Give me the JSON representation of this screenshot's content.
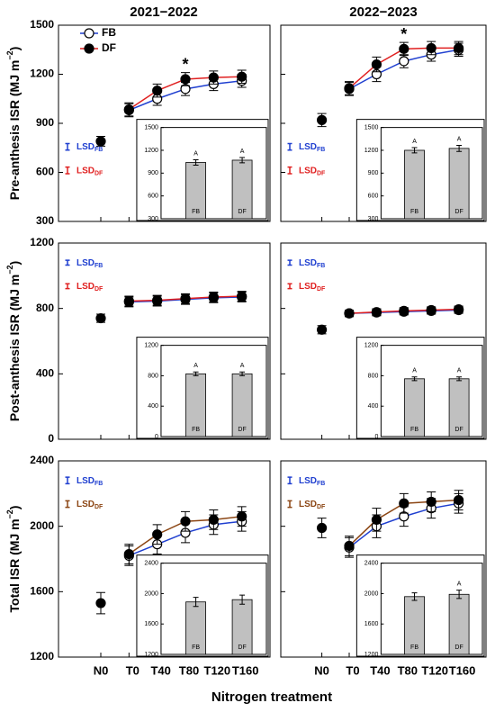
{
  "column_titles": [
    "2021−2022",
    "2022−2023"
  ],
  "row_labels": [
    {
      "text": "Pre-anthesis ISR (MJ m",
      "sup": "−2",
      "end": ")"
    },
    {
      "text": "Post-anthesis ISR (MJ m",
      "sup": "−2",
      "end": ")"
    },
    {
      "text": "Total ISR (MJ m",
      "sup": "−2",
      "end": ")"
    }
  ],
  "x_label": "Nitrogen treatment",
  "chart_data": [
    {
      "type": "line",
      "ylim": [
        300,
        1500
      ],
      "yticks": [
        300,
        600,
        900,
        1200,
        1500
      ],
      "legend": "upper left",
      "lsd_corner": "center left",
      "series": [
        {
          "name": "FB",
          "color": "#1f3fd0",
          "marker_face": "#ffffff",
          "values": [
            null,
            980,
            1050,
            1110,
            1140,
            1160
          ],
          "errors": [
            null,
            40,
            40,
            40,
            40,
            40
          ]
        },
        {
          "name": "DF",
          "color": "#e02020",
          "marker_face": "#000000",
          "values": [
            null,
            985,
            1100,
            1170,
            1180,
            1185
          ],
          "errors": [
            null,
            40,
            40,
            40,
            40,
            40
          ]
        },
        {
          "color": "#000000",
          "marker_face": "#000000",
          "values": [
            790,
            null,
            null,
            null,
            null,
            null
          ],
          "errors": [
            30,
            null,
            null,
            null,
            null,
            null
          ]
        }
      ],
      "annotations": [
        {
          "text": "*",
          "at": 3
        }
      ],
      "lsd": [
        {
          "label": "LSD",
          "sub": "FB",
          "value": 40,
          "color": "#1f3fd0"
        },
        {
          "label": "LSD",
          "sub": "DF",
          "value": 40,
          "color": "#e02020"
        }
      ],
      "inset": {
        "categories": [
          "FB",
          "DF"
        ],
        "values": [
          1040,
          1070
        ],
        "errors": [
          35,
          35
        ],
        "letters": [
          "A",
          "A"
        ],
        "color": "#c0c0c0",
        "ylim": [
          300,
          1500
        ],
        "yticks": [
          300,
          600,
          900,
          1200,
          1500
        ]
      }
    },
    {
      "type": "line",
      "ylim": [
        300,
        1500
      ],
      "yticks": [
        300,
        600,
        900,
        1200,
        1500
      ],
      "lsd_corner": "center left",
      "series": [
        {
          "name": "FB",
          "color": "#1f3fd0",
          "marker_face": "#ffffff",
          "values": [
            null,
            1110,
            1200,
            1280,
            1320,
            1350
          ],
          "errors": [
            null,
            40,
            45,
            40,
            40,
            40
          ]
        },
        {
          "name": "DF",
          "color": "#e02020",
          "marker_face": "#000000",
          "values": [
            null,
            1115,
            1260,
            1355,
            1360,
            1360
          ],
          "errors": [
            null,
            40,
            45,
            40,
            40,
            40
          ]
        },
        {
          "color": "#000000",
          "marker_face": "#000000",
          "values": [
            920,
            null,
            null,
            null,
            null,
            null
          ],
          "errors": [
            40,
            null,
            null,
            null,
            null,
            null
          ]
        }
      ],
      "annotations": [
        {
          "text": "*",
          "at": 3
        }
      ],
      "lsd": [
        {
          "label": "LSD",
          "sub": "FB",
          "value": 40,
          "color": "#1f3fd0"
        },
        {
          "label": "LSD",
          "sub": "DF",
          "value": 40,
          "color": "#e02020"
        }
      ],
      "inset": {
        "categories": [
          "FB",
          "DF"
        ],
        "values": [
          1200,
          1225
        ],
        "errors": [
          35,
          40
        ],
        "letters": [
          "A",
          "A"
        ],
        "color": "#c0c0c0",
        "ylim": [
          300,
          1500
        ],
        "yticks": [
          300,
          600,
          900,
          1200,
          1500
        ]
      }
    },
    {
      "type": "line",
      "ylim": [
        0,
        1200
      ],
      "yticks": [
        0,
        400,
        800,
        1200
      ],
      "lsd_corner": "upper left",
      "series": [
        {
          "name": "FB",
          "color": "#1f3fd0",
          "marker_face": "#ffffff",
          "values": [
            null,
            840,
            845,
            855,
            865,
            870
          ],
          "errors": [
            null,
            30,
            30,
            30,
            30,
            30
          ]
        },
        {
          "name": "DF",
          "color": "#e02020",
          "marker_face": "#000000",
          "values": [
            null,
            845,
            850,
            860,
            870,
            875
          ],
          "errors": [
            null,
            30,
            30,
            30,
            30,
            30
          ]
        },
        {
          "color": "#000000",
          "marker_face": "#000000",
          "values": [
            740,
            null,
            null,
            null,
            null,
            null
          ],
          "errors": [
            25,
            null,
            null,
            null,
            null,
            null
          ]
        }
      ],
      "lsd": [
        {
          "label": "LSD",
          "sub": "FB",
          "value": 30,
          "color": "#1f3fd0"
        },
        {
          "label": "LSD",
          "sub": "DF",
          "value": 30,
          "color": "#e02020"
        }
      ],
      "inset": {
        "categories": [
          "FB",
          "DF"
        ],
        "values": [
          825,
          825
        ],
        "errors": [
          25,
          25
        ],
        "letters": [
          "A",
          "A"
        ],
        "color": "#c0c0c0",
        "ylim": [
          0,
          1200
        ],
        "yticks": [
          0,
          400,
          800,
          1200
        ]
      }
    },
    {
      "type": "line",
      "ylim": [
        0,
        1200
      ],
      "yticks": [
        0,
        400,
        800,
        1200
      ],
      "lsd_corner": "upper left",
      "series": [
        {
          "name": "FB",
          "color": "#1f3fd0",
          "marker_face": "#ffffff",
          "values": [
            null,
            770,
            775,
            780,
            785,
            790
          ],
          "errors": [
            null,
            20,
            20,
            20,
            20,
            20
          ]
        },
        {
          "name": "DF",
          "color": "#e02020",
          "marker_face": "#000000",
          "values": [
            null,
            770,
            778,
            785,
            790,
            795
          ],
          "errors": [
            null,
            20,
            20,
            20,
            20,
            20
          ]
        },
        {
          "color": "#000000",
          "marker_face": "#000000",
          "values": [
            670,
            null,
            null,
            null,
            null,
            null
          ],
          "errors": [
            25,
            null,
            null,
            null,
            null,
            null
          ]
        }
      ],
      "lsd": [
        {
          "label": "LSD",
          "sub": "FB",
          "value": 30,
          "color": "#1f3fd0"
        },
        {
          "label": "LSD",
          "sub": "DF",
          "value": 30,
          "color": "#e02020"
        }
      ],
      "inset": {
        "categories": [
          "FB",
          "DF"
        ],
        "values": [
          760,
          760
        ],
        "errors": [
          25,
          25
        ],
        "letters": [
          "A",
          "A"
        ],
        "color": "#c0c0c0",
        "ylim": [
          0,
          1200
        ],
        "yticks": [
          0,
          400,
          800,
          1200
        ]
      }
    },
    {
      "type": "line",
      "ylim": [
        1200,
        2400
      ],
      "yticks": [
        1200,
        1600,
        2000,
        2400
      ],
      "lsd_corner": "upper left",
      "categories": [
        "N0",
        "T0",
        "T40",
        "T80",
        "T120",
        "T160"
      ],
      "series": [
        {
          "name": "FB",
          "color": "#1f3fd0",
          "marker_face": "#ffffff",
          "values": [
            null,
            1820,
            1890,
            1960,
            2010,
            2030
          ],
          "errors": [
            null,
            60,
            60,
            60,
            60,
            60
          ]
        },
        {
          "name": "DF",
          "color": "#8b4513",
          "marker_face": "#000000",
          "values": [
            null,
            1830,
            1950,
            2030,
            2040,
            2060
          ],
          "errors": [
            null,
            60,
            60,
            60,
            60,
            60
          ]
        },
        {
          "color": "#000000",
          "marker_face": "#000000",
          "values": [
            1530,
            null,
            null,
            null,
            null,
            null
          ],
          "errors": [
            65,
            null,
            null,
            null,
            null,
            null
          ]
        }
      ],
      "lsd": [
        {
          "label": "LSD",
          "sub": "FB",
          "value": 40,
          "color": "#1f3fd0"
        },
        {
          "label": "LSD",
          "sub": "DF",
          "value": 40,
          "color": "#8b4513"
        }
      ],
      "inset": {
        "categories": [
          "FB",
          "DF"
        ],
        "values": [
          1890,
          1920
        ],
        "errors": [
          60,
          60
        ],
        "letters": [
          null,
          null
        ],
        "color": "#c0c0c0",
        "ylim": [
          1200,
          2400
        ],
        "yticks": [
          1200,
          1600,
          2000,
          2400
        ]
      }
    },
    {
      "type": "line",
      "ylim": [
        1200,
        2400
      ],
      "yticks": [
        1200,
        1600,
        2000,
        2400
      ],
      "lsd_corner": "upper left",
      "categories": [
        "N0",
        "T0",
        "T40",
        "T80",
        "T120",
        "T160"
      ],
      "series": [
        {
          "name": "FB",
          "color": "#1f3fd0",
          "marker_face": "#ffffff",
          "values": [
            null,
            1870,
            2000,
            2060,
            2110,
            2140
          ],
          "errors": [
            null,
            60,
            70,
            60,
            60,
            60
          ]
        },
        {
          "name": "DF",
          "color": "#8b4513",
          "marker_face": "#000000",
          "values": [
            null,
            1880,
            2040,
            2140,
            2150,
            2160
          ],
          "errors": [
            null,
            60,
            70,
            60,
            60,
            60
          ]
        },
        {
          "color": "#000000",
          "marker_face": "#000000",
          "values": [
            1990,
            null,
            null,
            null,
            null,
            null
          ],
          "errors": [
            60,
            null,
            null,
            null,
            null,
            null
          ]
        }
      ],
      "lsd": [
        {
          "label": "LSD",
          "sub": "FB",
          "value": 40,
          "color": "#1f3fd0"
        },
        {
          "label": "LSD",
          "sub": "DF",
          "value": 40,
          "color": "#8b4513"
        }
      ],
      "inset": {
        "categories": [
          "FB",
          "DF"
        ],
        "values": [
          1960,
          1990
        ],
        "errors": [
          50,
          55
        ],
        "letters": [
          null,
          "A"
        ],
        "color": "#c0c0c0",
        "ylim": [
          1200,
          2400
        ],
        "yticks": [
          1200,
          1600,
          2000,
          2400
        ]
      }
    }
  ]
}
